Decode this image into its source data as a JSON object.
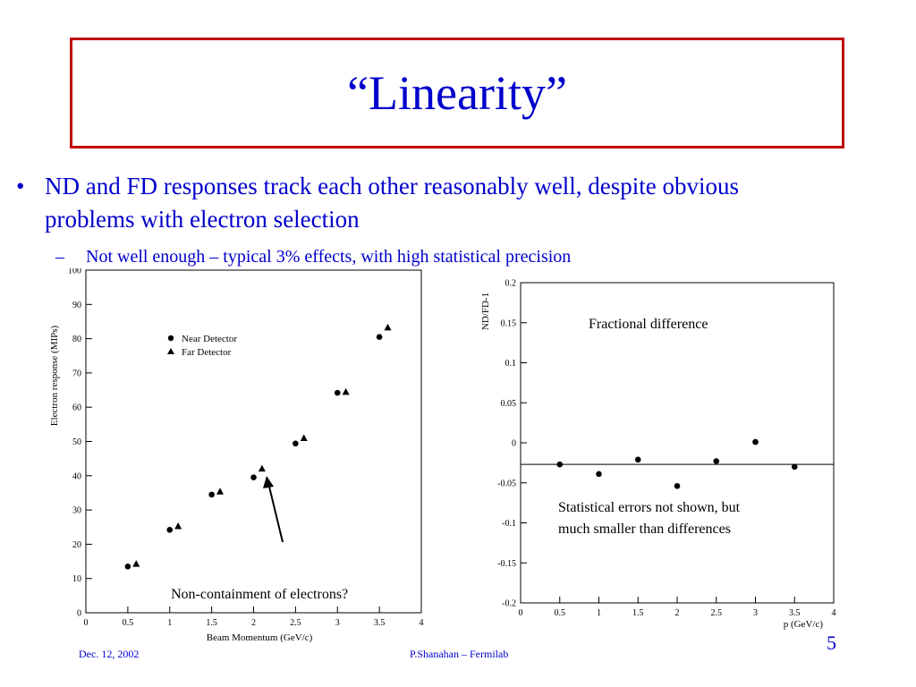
{
  "slide": {
    "title": "“Linearity”",
    "bullet_main": "ND and FD responses track each other reasonably well, despite obvious problems with electron selection",
    "bullet_sub": "Not well enough – typical 3% effects, with high statistical precision",
    "footer_date": "Dec. 12, 2002",
    "footer_author": "P.Shanahan – Fermilab",
    "page_number": "5"
  },
  "colors": {
    "title_border": "#c00000",
    "text": "#0000cc"
  },
  "chart_data": [
    {
      "type": "scatter",
      "title": "",
      "xlabel": "Beam Momentum (GeV/c)",
      "ylabel": "Electron response (MIPs)",
      "xlim": [
        0,
        4
      ],
      "ylim": [
        0,
        100
      ],
      "x_ticks": [
        0,
        0.5,
        1,
        1.5,
        2,
        2.5,
        3,
        3.5,
        4
      ],
      "x_tick_labels": [
        "0",
        "0.5",
        "1",
        "1.5",
        "2",
        "2.5",
        "3",
        "3.5",
        "4"
      ],
      "y_ticks": [
        0,
        10,
        20,
        30,
        40,
        50,
        60,
        70,
        80,
        90,
        100
      ],
      "y_tick_labels": [
        "0",
        "10",
        "20",
        "30",
        "40",
        "50",
        "60",
        "70",
        "80",
        "90",
        "100"
      ],
      "legend_position": "top-left",
      "series": [
        {
          "name": "Near Detector",
          "marker": "circle",
          "x": [
            0.5,
            1.0,
            1.5,
            2.0,
            2.5,
            3.0,
            3.5
          ],
          "y": [
            13.5,
            24.2,
            34.5,
            39.5,
            49.4,
            64.2,
            80.5
          ]
        },
        {
          "name": "Far Detector",
          "marker": "triangle",
          "x": [
            0.6,
            1.1,
            1.6,
            2.1,
            2.6,
            3.1,
            3.6
          ],
          "y": [
            14.2,
            25.2,
            35.3,
            42.0,
            50.9,
            64.4,
            83.2
          ]
        }
      ],
      "annotation": "Non-containment of electrons?"
    },
    {
      "type": "scatter",
      "title": "",
      "xlabel": "p (GeV/c)",
      "ylabel": "ND/FD-1",
      "xlim": [
        0,
        4
      ],
      "ylim": [
        -0.2,
        0.2
      ],
      "x_ticks": [
        0,
        0.5,
        1,
        1.5,
        2,
        2.5,
        3,
        3.5,
        4
      ],
      "x_tick_labels": [
        "0",
        "0.5",
        "1",
        "1.5",
        "2",
        "2.5",
        "3",
        "3.5",
        "4"
      ],
      "y_ticks": [
        0.2,
        0.15,
        0.1,
        0.05,
        0,
        -0.05,
        -0.1,
        -0.15,
        -0.2
      ],
      "y_tick_labels": [
        "0.2",
        "0.15",
        "0.1",
        "0.05",
        "0",
        "-0.05",
        "-0.1",
        "-0.15",
        "-0.2"
      ],
      "reference_line_y": -0.027,
      "series": [
        {
          "marker": "circle",
          "x": [
            0.5,
            1.0,
            1.5,
            2.0,
            2.5,
            3.0,
            3.5
          ],
          "y": [
            -0.027,
            -0.039,
            -0.021,
            -0.054,
            -0.023,
            0.001,
            -0.03
          ]
        }
      ],
      "annotations": [
        "Fractional difference",
        "Statistical errors not shown, but much smaller than differences"
      ]
    }
  ]
}
